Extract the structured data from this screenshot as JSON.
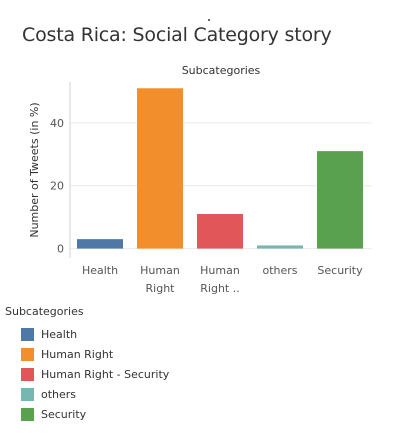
{
  "title": "Costa Rica: Social Category story",
  "chart_data": {
    "type": "bar",
    "header": "Subcategories",
    "ylabel": "Number of Tweets (in %)",
    "ylim": [
      -3,
      53
    ],
    "yticks": [
      0,
      20,
      40
    ],
    "grid": true,
    "categories": [
      {
        "lines": [
          "Health"
        ],
        "value": 3,
        "color": "#4e79a7"
      },
      {
        "lines": [
          "Human",
          "Right"
        ],
        "value": 51,
        "color": "#f28e2b"
      },
      {
        "lines": [
          "Human",
          "Right .."
        ],
        "value": 11,
        "color": "#e15759"
      },
      {
        "lines": [
          "others"
        ],
        "value": 1,
        "color": "#76b7b2"
      },
      {
        "lines": [
          "Security"
        ],
        "value": 31,
        "color": "#59a14f"
      }
    ]
  },
  "legend": {
    "title": "Subcategories",
    "position": "bottom-left",
    "items": [
      {
        "label": "Health",
        "color": "#4e79a7"
      },
      {
        "label": "Human Right",
        "color": "#f28e2b"
      },
      {
        "label": "Human Right - Security",
        "color": "#e15759"
      },
      {
        "label": "others",
        "color": "#76b7b2"
      },
      {
        "label": "Security",
        "color": "#59a14f"
      }
    ]
  }
}
